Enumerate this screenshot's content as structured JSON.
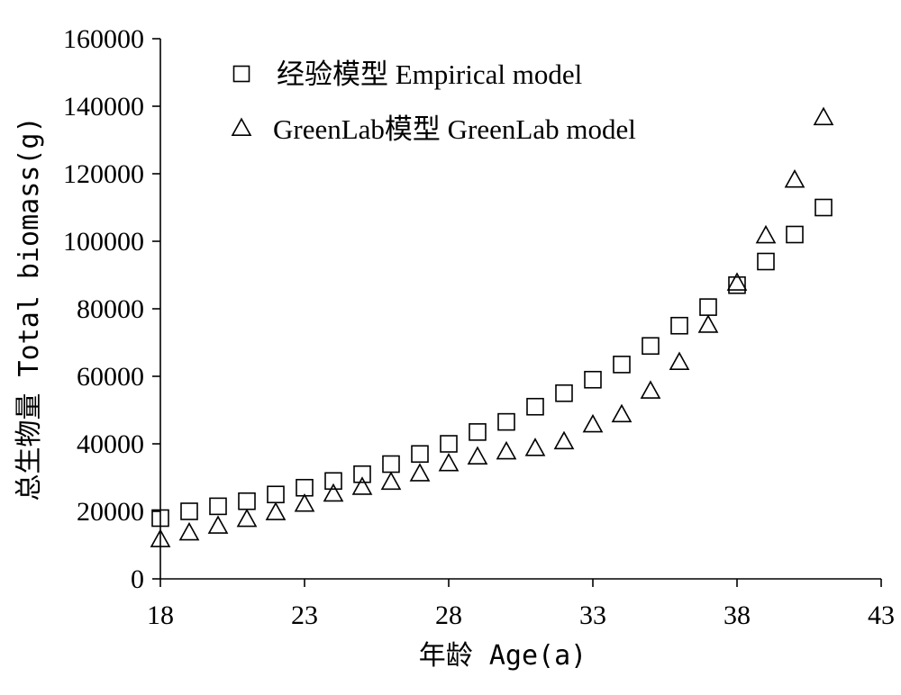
{
  "chart_data": {
    "type": "scatter",
    "xlabel": "年龄 Age(a)",
    "ylabel": "总生物量 Total biomass(g)",
    "xlim": [
      18,
      43
    ],
    "ylim": [
      0,
      160000
    ],
    "x_ticks": [
      18,
      23,
      28,
      33,
      38,
      43
    ],
    "y_ticks": [
      0,
      20000,
      40000,
      60000,
      80000,
      100000,
      120000,
      140000,
      160000
    ],
    "grid": false,
    "legend_position": "top-left",
    "series": [
      {
        "name": "经验模型 Empirical model",
        "marker": "square",
        "x": [
          18,
          19,
          20,
          21,
          22,
          23,
          24,
          25,
          26,
          27,
          28,
          29,
          30,
          31,
          32,
          33,
          34,
          35,
          36,
          37,
          38,
          39,
          40,
          41
        ],
        "y": [
          18000,
          20000,
          21500,
          23000,
          25000,
          27000,
          29000,
          31000,
          34000,
          37000,
          40000,
          43500,
          46500,
          51000,
          55000,
          59000,
          63500,
          69000,
          75000,
          80500,
          87000,
          94000,
          102000,
          110000
        ]
      },
      {
        "name": "GreenLab模型 GreenLab model",
        "marker": "triangle",
        "x": [
          18,
          19,
          20,
          21,
          22,
          23,
          24,
          25,
          26,
          27,
          28,
          29,
          30,
          31,
          32,
          33,
          34,
          35,
          36,
          37,
          38,
          39,
          40,
          41
        ],
        "y": [
          11500,
          13500,
          15500,
          17500,
          19500,
          22000,
          25000,
          27000,
          28500,
          31000,
          34000,
          36000,
          37500,
          38500,
          40500,
          45500,
          48500,
          55500,
          64000,
          75000,
          87500,
          101500,
          118000,
          136500
        ]
      }
    ]
  }
}
